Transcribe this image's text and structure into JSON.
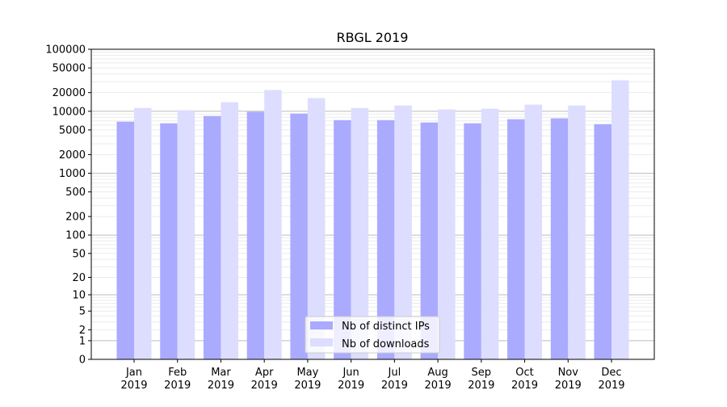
{
  "chart_data": {
    "type": "bar",
    "title": "RBGL 2019",
    "xlabel": "",
    "ylabel": "",
    "yscale": "symlog",
    "ylim": [
      0,
      100000
    ],
    "yticks": [
      0,
      1,
      2,
      5,
      10,
      20,
      50,
      100,
      200,
      500,
      1000,
      2000,
      5000,
      10000,
      20000,
      50000,
      100000
    ],
    "grid": true,
    "legend_position": "bottom-center",
    "categories": [
      "Jan\n2019",
      "Feb\n2019",
      "Mar\n2019",
      "Apr\n2019",
      "May\n2019",
      "Jun\n2019",
      "Jul\n2019",
      "Aug\n2019",
      "Sep\n2019",
      "Oct\n2019",
      "Nov\n2019",
      "Dec\n2019"
    ],
    "series": [
      {
        "name": "Nb of distinct IPs",
        "color": "#aaaaff",
        "values": [
          6800,
          6400,
          8400,
          9800,
          9200,
          7200,
          7200,
          6600,
          6400,
          7450,
          7700,
          6200
        ]
      },
      {
        "name": "Nb of downloads",
        "color": "#ddddff",
        "values": [
          11300,
          10400,
          14000,
          22000,
          16300,
          11300,
          12400,
          10700,
          11000,
          12800,
          12400,
          31500
        ]
      }
    ]
  }
}
